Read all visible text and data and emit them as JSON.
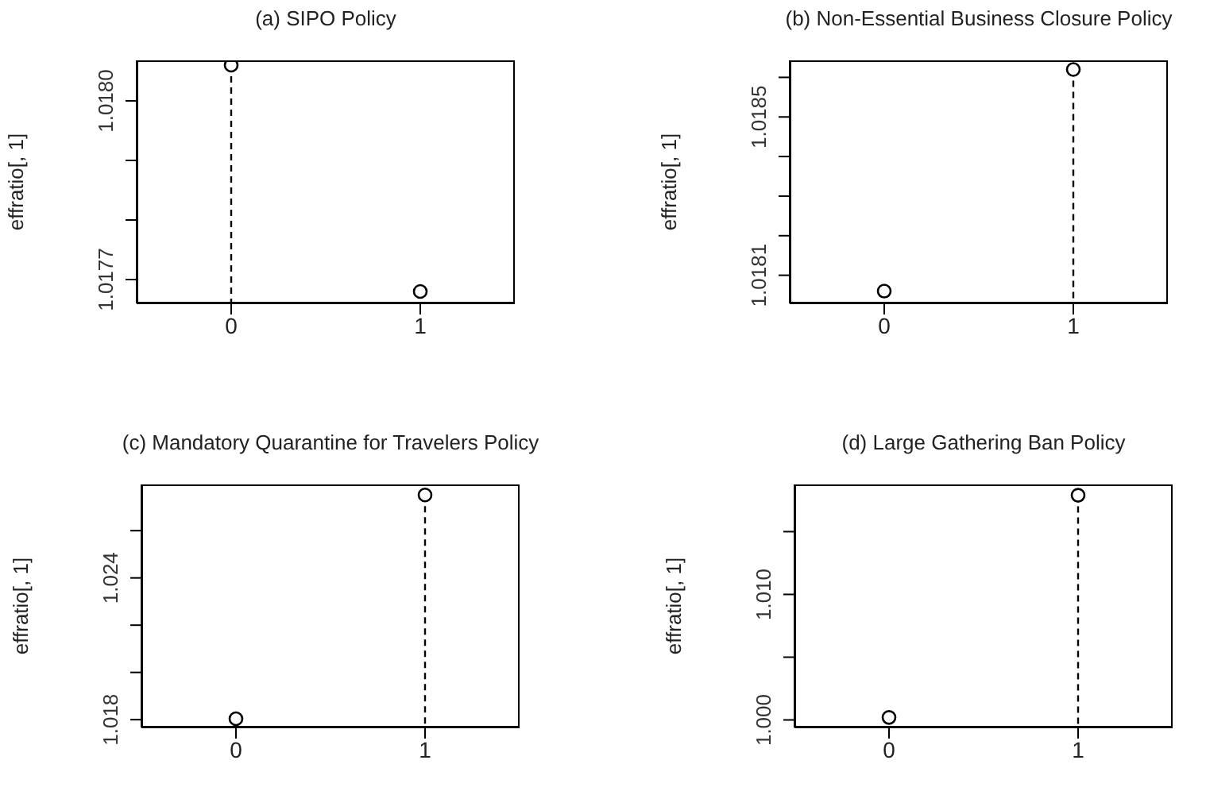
{
  "chart_data": [
    {
      "type": "lollipop",
      "title": "(a) SIPO Policy",
      "ylabel": "effratio[, 1]",
      "categories": [
        "0",
        "1"
      ],
      "values": [
        1.01806,
        1.01768
      ],
      "color": "#000000",
      "marker": "circle",
      "line_style": "dashed",
      "ylim": [
        1.01766,
        1.018068
      ],
      "yticks": [
        {
          "value": 1.0177,
          "label": "1.0177"
        },
        {
          "value": 1.0178,
          "label": null
        },
        {
          "value": 1.0179,
          "label": null
        },
        {
          "value": 1.018,
          "label": "1.0180"
        }
      ]
    },
    {
      "type": "lollipop",
      "title": "(b) Non-Essential Business Closure Policy",
      "ylabel": "effratio[, 1]",
      "categories": [
        "0",
        "1"
      ],
      "values": [
        1.01806,
        1.01862
      ],
      "color": "#000000",
      "marker": "circle",
      "line_style": "dashed",
      "ylim": [
        1.018029,
        1.018643
      ],
      "yticks": [
        {
          "value": 1.0181,
          "label": "1.0181"
        },
        {
          "value": 1.0182,
          "label": null
        },
        {
          "value": 1.0183,
          "label": null
        },
        {
          "value": 1.0184,
          "label": null
        },
        {
          "value": 1.0185,
          "label": "1.0185"
        },
        {
          "value": 1.0186,
          "label": null
        }
      ]
    },
    {
      "type": "lollipop",
      "title": "(c) Mandatory Quarantine for Travelers Policy",
      "ylabel": "effratio[, 1]",
      "categories": [
        "0",
        "1"
      ],
      "values": [
        1.01804,
        1.02751
      ],
      "color": "#000000",
      "marker": "circle",
      "line_style": "dashed",
      "ylim": [
        1.01767,
        1.027956
      ],
      "yticks": [
        {
          "value": 1.018,
          "label": "1.018"
        },
        {
          "value": 1.02,
          "label": null
        },
        {
          "value": 1.022,
          "label": null
        },
        {
          "value": 1.024,
          "label": "1.024"
        },
        {
          "value": 1.026,
          "label": null
        }
      ]
    },
    {
      "type": "lollipop",
      "title": "(d) Large Gathering Ban Policy",
      "ylabel": "effratio[, 1]",
      "categories": [
        "0",
        "1"
      ],
      "values": [
        1.0002,
        1.0179
      ],
      "color": "#000000",
      "marker": "circle",
      "line_style": "dashed",
      "ylim": [
        0.9994,
        1.01876
      ],
      "yticks": [
        {
          "value": 1,
          "label": "1.000"
        },
        {
          "value": 1.005,
          "label": null
        },
        {
          "value": 1.01,
          "label": "1.010"
        },
        {
          "value": 1.015,
          "label": null
        }
      ]
    }
  ]
}
